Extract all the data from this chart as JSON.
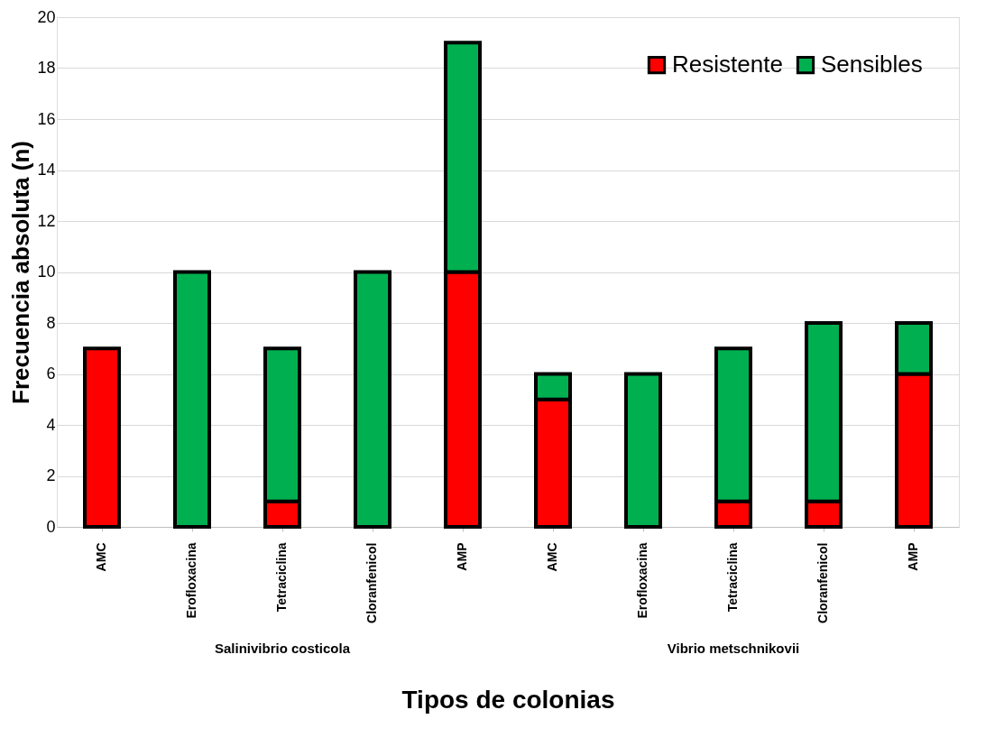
{
  "chart_data": {
    "type": "bar",
    "stacked": true,
    "xlabel": "Tipos de colonias",
    "ylabel": "Frecuencia absoluta (n)",
    "categories": [
      "AMC",
      "Erofloxacina",
      "Tetraciclina",
      "Cloranfenicol",
      "AMP",
      "AMC",
      "Erofloxacina",
      "Tetraciclina",
      "Cloranfenicol",
      "AMP"
    ],
    "series": [
      {
        "name": "Resistente",
        "color": "#ff0000",
        "values": [
          7,
          0,
          1,
          0,
          10,
          5,
          0,
          1,
          1,
          6
        ]
      },
      {
        "name": "Sensibles",
        "color": "#00b050",
        "values": [
          0,
          10,
          6,
          10,
          9,
          1,
          6,
          6,
          7,
          2
        ]
      }
    ],
    "ylim": [
      0,
      20
    ],
    "yticks": [
      0,
      2,
      4,
      6,
      8,
      10,
      12,
      14,
      16,
      18,
      20
    ],
    "grid": "y",
    "legend": "top right",
    "annotations": [
      "Salinivibrio costicola",
      "Vibrio metschnikovii"
    ]
  }
}
